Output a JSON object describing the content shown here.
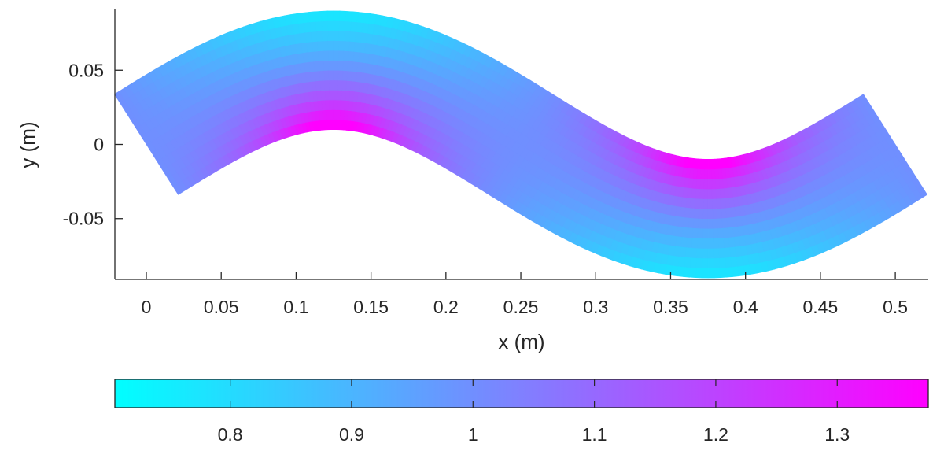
{
  "chart_data": {
    "type": "heatmap",
    "title": "",
    "xlabel": "x (m)",
    "ylabel": "y (m)",
    "xlim": [
      -0.021,
      0.522
    ],
    "ylim": [
      -0.091,
      0.091
    ],
    "x_ticks": [
      "0",
      "0.05",
      "0.1",
      "0.15",
      "0.2",
      "0.25",
      "0.3",
      "0.35",
      "0.4",
      "0.45",
      "0.5"
    ],
    "y_ticks": [
      "0.05",
      "0",
      "-0.05"
    ],
    "grid": false,
    "centerline": {
      "x_start": 0.0,
      "x_end": 0.5,
      "amplitude": 0.05,
      "wavelength": 0.5,
      "band_half_width": 0.04,
      "points": [
        {
          "x": 0.0,
          "y": 0.0
        },
        {
          "x": 0.125,
          "y": 0.05
        },
        {
          "x": 0.25,
          "y": 0.0
        },
        {
          "x": 0.375,
          "y": -0.05
        },
        {
          "x": 0.5,
          "y": 0.0
        }
      ]
    },
    "band_edges": {
      "upper_peak": [
        0.125,
        0.09
      ],
      "lower_peak_of_crest": [
        0.125,
        0.01
      ],
      "upper_trough": [
        0.375,
        -0.01
      ],
      "lower_trough": [
        0.375,
        -0.09
      ],
      "left_end": [
        [
          -0.021,
          0.034
        ],
        [
          0.021,
          -0.034
        ]
      ],
      "right_end": [
        [
          0.479,
          0.034
        ],
        [
          0.521,
          -0.034
        ]
      ]
    },
    "colorbar": {
      "location": "south",
      "range": [
        0.705,
        1.375
      ],
      "ticks": [
        "0.8",
        "0.9",
        "1",
        "1.1",
        "1.2",
        "1.3"
      ],
      "colormap": "cool",
      "min_color": "#00ffff",
      "max_color": "#ff00ff"
    }
  }
}
